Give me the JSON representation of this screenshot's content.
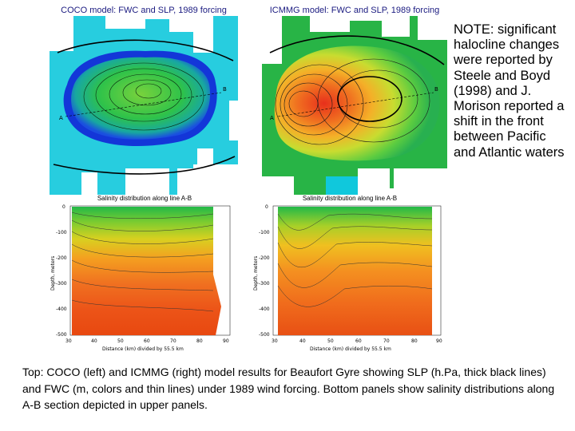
{
  "figures": {
    "coco_map": {
      "title": "COCO model: FWC and SLP, 1989 forcing",
      "label_a": "A",
      "label_b": "B"
    },
    "icmmg_map": {
      "title": "ICMMG model: FWC and SLP, 1989 forcing",
      "label_a": "A",
      "label_b": "B"
    },
    "coco_section": {
      "title": "Salinity distribution along line A-B",
      "xlabel": "Distance (km) divided by 55.5 km",
      "ylabel": "Depth, meters",
      "x_ticks": [
        "30",
        "40",
        "50",
        "60",
        "70",
        "80",
        "90"
      ],
      "y_ticks": [
        "0",
        "-100",
        "-200",
        "-300",
        "-400",
        "-500"
      ]
    },
    "icmmg_section": {
      "title": "Salinity distribution along line A-B",
      "xlabel": "Distance (km) divided by 55.5 km",
      "ylabel": "Depth, meters",
      "x_ticks": [
        "30",
        "40",
        "50",
        "60",
        "70",
        "80",
        "90"
      ],
      "y_ticks": [
        "0",
        "-100",
        "-200",
        "-300",
        "-400",
        "-500"
      ]
    }
  },
  "note": "NOTE: significant halocline changes were reported by Steele and Boyd (1998) and J. Morison reported a shift in the front between Pacific and Atlantic waters",
  "caption": "Top: COCO (left) and ICMMG (right) model results for Beaufort Gyre showing SLP (h.Pa, thick black lines) and FWC (m, colors and thin lines) under 1989 wind forcing. Bottom panels show salinity distributions along A-B section depicted in upper panels."
}
